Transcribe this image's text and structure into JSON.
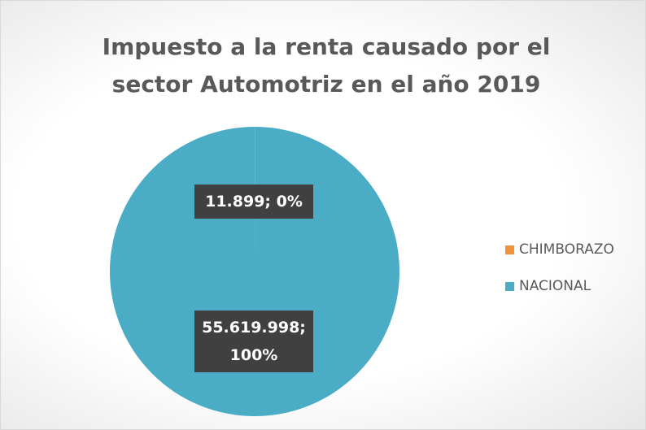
{
  "chart_data": {
    "type": "pie",
    "title": "Impuesto a la renta causado por el sector Automotriz en el año 2019",
    "categories": [
      "CHIMBORAZO",
      "NACIONAL"
    ],
    "values": [
      11899,
      55619998
    ],
    "value_labels": [
      "11.899; 0%",
      "55.619.998; 100%"
    ],
    "colors": [
      "#f0913c",
      "#4bacc6"
    ],
    "legend": "right"
  }
}
